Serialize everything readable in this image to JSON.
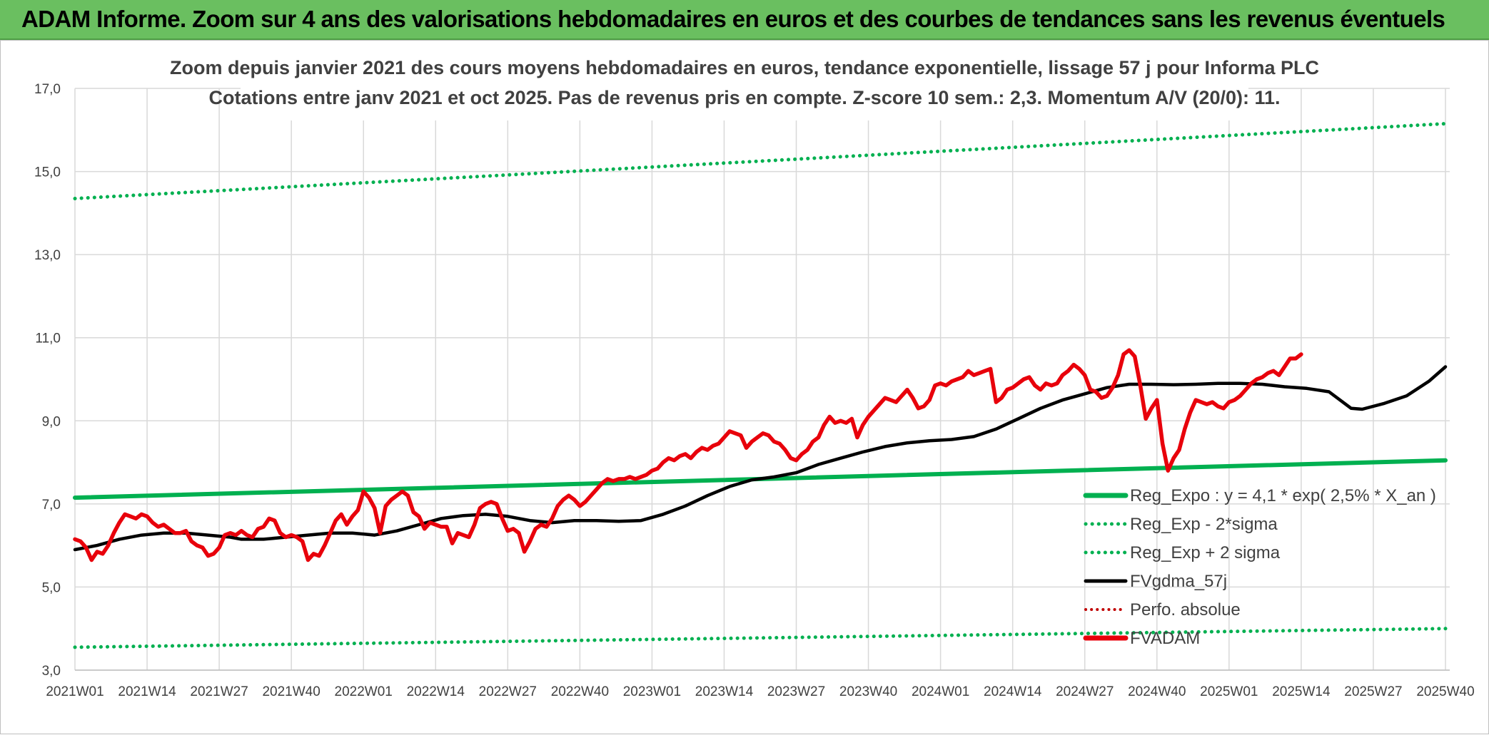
{
  "banner": {
    "title": "ADAM Informe. Zoom sur 4 ans des valorisations hebdomadaires en euros et des courbes de tendances sans les revenus éventuels"
  },
  "colors": {
    "banner_bg": "#6abf60",
    "reg_expo": "#00b050",
    "fvgdma": "#000000",
    "perfo": "#c00000",
    "fvadam": "#e8000b",
    "grid": "#d9d9d9"
  },
  "chart_data": {
    "type": "line",
    "title_lines": [
      "Zoom depuis janvier 2021 des cours moyens hebdomadaires en euros, tendance exponentielle, lissage 57 j pour Informa PLC",
      "Cotations entre janv 2021 et oct 2025. Pas de revenus pris en compte. Z-score 10 sem.: 2,3. Momentum A/V (20/0): 11."
    ],
    "xlabel": "",
    "ylabel": "",
    "ylim": [
      3.0,
      17.0
    ],
    "yticks": [
      "3,0",
      "5,0",
      "7,0",
      "9,0",
      "11,0",
      "13,0",
      "15,0",
      "17,0"
    ],
    "xticks": [
      "2021W01",
      "2021W14",
      "2021W27",
      "2021W40",
      "2022W01",
      "2022W14",
      "2022W27",
      "2022W40",
      "2023W01",
      "2023W14",
      "2023W27",
      "2023W40",
      "2024W01",
      "2024W14",
      "2024W27",
      "2024W40",
      "2025W01",
      "2025W14",
      "2025W27",
      "2025W40"
    ],
    "x_range_weeks": [
      0,
      247
    ],
    "grid": true,
    "legend_position": "bottom-right",
    "series": [
      {
        "name": "Reg_Expo : y = 4,1 * exp( 2,5% *  X_an )",
        "style": "solid",
        "color": "#00b050",
        "points": [
          [
            0,
            7.15
          ],
          [
            247,
            8.05
          ]
        ]
      },
      {
        "name": "Reg_Exp - 2*sigma",
        "style": "dotted",
        "color": "#00b050",
        "points": [
          [
            0,
            3.55
          ],
          [
            247,
            4.0
          ]
        ]
      },
      {
        "name": "Reg_Exp + 2 sigma",
        "style": "dotted",
        "color": "#00b050",
        "points": [
          [
            0,
            14.35
          ],
          [
            247,
            16.15
          ]
        ]
      },
      {
        "name": "FVgdma_57j",
        "style": "solid",
        "color": "#000000",
        "points": [
          [
            0,
            5.9
          ],
          [
            4,
            6.0
          ],
          [
            8,
            6.15
          ],
          [
            12,
            6.25
          ],
          [
            16,
            6.3
          ],
          [
            20,
            6.3
          ],
          [
            24,
            6.25
          ],
          [
            28,
            6.2
          ],
          [
            30,
            6.15
          ],
          [
            34,
            6.15
          ],
          [
            38,
            6.2
          ],
          [
            42,
            6.25
          ],
          [
            46,
            6.3
          ],
          [
            50,
            6.3
          ],
          [
            54,
            6.25
          ],
          [
            58,
            6.35
          ],
          [
            62,
            6.5
          ],
          [
            66,
            6.65
          ],
          [
            70,
            6.72
          ],
          [
            74,
            6.75
          ],
          [
            78,
            6.7
          ],
          [
            82,
            6.6
          ],
          [
            86,
            6.55
          ],
          [
            90,
            6.6
          ],
          [
            94,
            6.6
          ],
          [
            98,
            6.58
          ],
          [
            102,
            6.6
          ],
          [
            106,
            6.75
          ],
          [
            110,
            6.95
          ],
          [
            114,
            7.2
          ],
          [
            118,
            7.42
          ],
          [
            122,
            7.58
          ],
          [
            126,
            7.65
          ],
          [
            130,
            7.75
          ],
          [
            134,
            7.95
          ],
          [
            138,
            8.1
          ],
          [
            142,
            8.25
          ],
          [
            146,
            8.38
          ],
          [
            150,
            8.47
          ],
          [
            154,
            8.52
          ],
          [
            158,
            8.55
          ],
          [
            162,
            8.62
          ],
          [
            166,
            8.8
          ],
          [
            170,
            9.05
          ],
          [
            174,
            9.3
          ],
          [
            178,
            9.5
          ],
          [
            182,
            9.65
          ],
          [
            186,
            9.8
          ],
          [
            190,
            9.88
          ],
          [
            194,
            9.88
          ],
          [
            198,
            9.87
          ],
          [
            202,
            9.88
          ],
          [
            206,
            9.9
          ],
          [
            210,
            9.9
          ],
          [
            214,
            9.88
          ],
          [
            218,
            9.82
          ],
          [
            222,
            9.78
          ],
          [
            226,
            9.7
          ],
          [
            230,
            9.3
          ],
          [
            232,
            9.28
          ],
          [
            236,
            9.42
          ],
          [
            240,
            9.6
          ],
          [
            244,
            9.95
          ],
          [
            247,
            10.3
          ]
        ]
      },
      {
        "name": "Perfo. absolue",
        "style": "dotted",
        "color": "#c00000",
        "points": []
      },
      {
        "name": "FVADAM",
        "style": "solid",
        "color": "#e8000b",
        "points": [
          [
            0,
            6.15
          ],
          [
            1,
            6.1
          ],
          [
            2,
            5.95
          ],
          [
            3,
            5.65
          ],
          [
            4,
            5.85
          ],
          [
            5,
            5.8
          ],
          [
            6,
            6.0
          ],
          [
            7,
            6.3
          ],
          [
            8,
            6.55
          ],
          [
            9,
            6.75
          ],
          [
            10,
            6.7
          ],
          [
            11,
            6.65
          ],
          [
            12,
            6.75
          ],
          [
            13,
            6.7
          ],
          [
            14,
            6.55
          ],
          [
            15,
            6.45
          ],
          [
            16,
            6.5
          ],
          [
            17,
            6.4
          ],
          [
            18,
            6.3
          ],
          [
            19,
            6.3
          ],
          [
            20,
            6.35
          ],
          [
            21,
            6.1
          ],
          [
            22,
            6.0
          ],
          [
            23,
            5.95
          ],
          [
            24,
            5.75
          ],
          [
            25,
            5.8
          ],
          [
            26,
            5.95
          ],
          [
            27,
            6.25
          ],
          [
            28,
            6.3
          ],
          [
            29,
            6.25
          ],
          [
            30,
            6.35
          ],
          [
            31,
            6.25
          ],
          [
            32,
            6.2
          ],
          [
            33,
            6.4
          ],
          [
            34,
            6.45
          ],
          [
            35,
            6.65
          ],
          [
            36,
            6.6
          ],
          [
            37,
            6.3
          ],
          [
            38,
            6.2
          ],
          [
            39,
            6.25
          ],
          [
            40,
            6.2
          ],
          [
            41,
            6.1
          ],
          [
            42,
            5.65
          ],
          [
            43,
            5.8
          ],
          [
            44,
            5.75
          ],
          [
            45,
            6.0
          ],
          [
            46,
            6.3
          ],
          [
            47,
            6.6
          ],
          [
            48,
            6.75
          ],
          [
            49,
            6.5
          ],
          [
            50,
            6.7
          ],
          [
            51,
            6.85
          ],
          [
            52,
            7.3
          ],
          [
            53,
            7.15
          ],
          [
            54,
            6.9
          ],
          [
            55,
            6.3
          ],
          [
            56,
            6.95
          ],
          [
            57,
            7.1
          ],
          [
            58,
            7.2
          ],
          [
            59,
            7.3
          ],
          [
            60,
            7.2
          ],
          [
            61,
            6.8
          ],
          [
            62,
            6.7
          ],
          [
            63,
            6.4
          ],
          [
            64,
            6.55
          ],
          [
            65,
            6.5
          ],
          [
            66,
            6.45
          ],
          [
            67,
            6.45
          ],
          [
            68,
            6.05
          ],
          [
            69,
            6.3
          ],
          [
            70,
            6.25
          ],
          [
            71,
            6.2
          ],
          [
            72,
            6.5
          ],
          [
            73,
            6.9
          ],
          [
            74,
            7.0
          ],
          [
            75,
            7.05
          ],
          [
            76,
            7.0
          ],
          [
            77,
            6.65
          ],
          [
            78,
            6.35
          ],
          [
            79,
            6.4
          ],
          [
            80,
            6.3
          ],
          [
            81,
            5.85
          ],
          [
            82,
            6.1
          ],
          [
            83,
            6.4
          ],
          [
            84,
            6.5
          ],
          [
            85,
            6.45
          ],
          [
            86,
            6.65
          ],
          [
            87,
            6.95
          ],
          [
            88,
            7.1
          ],
          [
            89,
            7.2
          ],
          [
            90,
            7.1
          ],
          [
            91,
            6.95
          ],
          [
            92,
            7.05
          ],
          [
            93,
            7.2
          ],
          [
            94,
            7.35
          ],
          [
            95,
            7.5
          ],
          [
            96,
            7.6
          ],
          [
            97,
            7.55
          ],
          [
            98,
            7.6
          ],
          [
            99,
            7.6
          ],
          [
            100,
            7.65
          ],
          [
            101,
            7.6
          ],
          [
            102,
            7.65
          ],
          [
            103,
            7.7
          ],
          [
            104,
            7.8
          ],
          [
            105,
            7.85
          ],
          [
            106,
            8.0
          ],
          [
            107,
            8.1
          ],
          [
            108,
            8.05
          ],
          [
            109,
            8.15
          ],
          [
            110,
            8.2
          ],
          [
            111,
            8.1
          ],
          [
            112,
            8.25
          ],
          [
            113,
            8.35
          ],
          [
            114,
            8.3
          ],
          [
            115,
            8.4
          ],
          [
            116,
            8.45
          ],
          [
            117,
            8.6
          ],
          [
            118,
            8.75
          ],
          [
            119,
            8.7
          ],
          [
            120,
            8.65
          ],
          [
            121,
            8.35
          ],
          [
            122,
            8.5
          ],
          [
            123,
            8.6
          ],
          [
            124,
            8.7
          ],
          [
            125,
            8.65
          ],
          [
            126,
            8.5
          ],
          [
            127,
            8.45
          ],
          [
            128,
            8.3
          ],
          [
            129,
            8.1
          ],
          [
            130,
            8.05
          ],
          [
            131,
            8.2
          ],
          [
            132,
            8.3
          ],
          [
            133,
            8.5
          ],
          [
            134,
            8.6
          ],
          [
            135,
            8.9
          ],
          [
            136,
            9.1
          ],
          [
            137,
            8.95
          ],
          [
            138,
            9.0
          ],
          [
            139,
            8.95
          ],
          [
            140,
            9.05
          ],
          [
            141,
            8.6
          ],
          [
            142,
            8.9
          ],
          [
            143,
            9.1
          ],
          [
            144,
            9.25
          ],
          [
            145,
            9.4
          ],
          [
            146,
            9.55
          ],
          [
            147,
            9.5
          ],
          [
            148,
            9.45
          ],
          [
            149,
            9.6
          ],
          [
            150,
            9.75
          ],
          [
            151,
            9.55
          ],
          [
            152,
            9.3
          ],
          [
            153,
            9.35
          ],
          [
            154,
            9.5
          ],
          [
            155,
            9.85
          ],
          [
            156,
            9.9
          ],
          [
            157,
            9.85
          ],
          [
            158,
            9.95
          ],
          [
            159,
            10.0
          ],
          [
            160,
            10.05
          ],
          [
            161,
            10.2
          ],
          [
            162,
            10.1
          ],
          [
            163,
            10.15
          ],
          [
            164,
            10.2
          ],
          [
            165,
            10.25
          ],
          [
            166,
            9.45
          ],
          [
            167,
            9.55
          ],
          [
            168,
            9.75
          ],
          [
            169,
            9.8
          ],
          [
            170,
            9.9
          ],
          [
            171,
            10.0
          ],
          [
            172,
            10.05
          ],
          [
            173,
            9.85
          ],
          [
            174,
            9.75
          ],
          [
            175,
            9.9
          ],
          [
            176,
            9.85
          ],
          [
            177,
            9.9
          ],
          [
            178,
            10.1
          ],
          [
            179,
            10.2
          ],
          [
            180,
            10.35
          ],
          [
            181,
            10.25
          ],
          [
            182,
            10.1
          ],
          [
            183,
            9.75
          ],
          [
            184,
            9.7
          ],
          [
            185,
            9.55
          ],
          [
            186,
            9.6
          ],
          [
            187,
            9.8
          ],
          [
            188,
            10.1
          ],
          [
            189,
            10.6
          ],
          [
            190,
            10.7
          ],
          [
            191,
            10.55
          ],
          [
            192,
            9.85
          ],
          [
            193,
            9.05
          ],
          [
            194,
            9.3
          ],
          [
            195,
            9.5
          ],
          [
            196,
            8.45
          ],
          [
            197,
            7.8
          ],
          [
            198,
            8.1
          ],
          [
            199,
            8.3
          ],
          [
            200,
            8.8
          ],
          [
            201,
            9.2
          ],
          [
            202,
            9.5
          ],
          [
            203,
            9.45
          ],
          [
            204,
            9.4
          ],
          [
            205,
            9.45
          ],
          [
            206,
            9.35
          ],
          [
            207,
            9.3
          ],
          [
            208,
            9.45
          ],
          [
            209,
            9.5
          ],
          [
            210,
            9.6
          ],
          [
            211,
            9.75
          ],
          [
            212,
            9.9
          ],
          [
            213,
            10.0
          ],
          [
            214,
            10.05
          ],
          [
            215,
            10.15
          ],
          [
            216,
            10.2
          ],
          [
            217,
            10.1
          ],
          [
            218,
            10.3
          ],
          [
            219,
            10.5
          ],
          [
            220,
            10.5
          ],
          [
            221,
            10.6
          ]
        ]
      }
    ]
  }
}
